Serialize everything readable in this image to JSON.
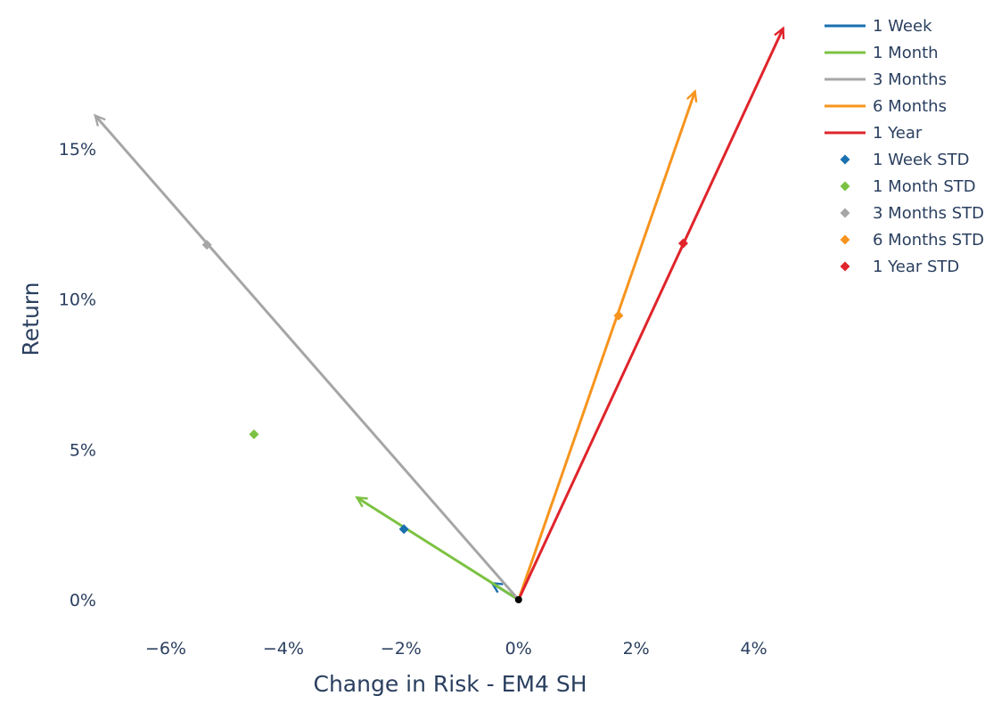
{
  "chart_data": {
    "type": "scatter",
    "title": "",
    "xlabel": "Change in Risk - EM4 SH",
    "ylabel": "Return",
    "xlim": [
      -7.0,
      4.4
    ],
    "ylim": [
      -0.8,
      19.2
    ],
    "x_ticks": [
      -6,
      -4,
      -2,
      0,
      2,
      4
    ],
    "x_tick_labels": [
      "−6%",
      "−4%",
      "−2%",
      "0%",
      "2%",
      "4%"
    ],
    "y_ticks": [
      0,
      5,
      10,
      15
    ],
    "y_tick_labels": [
      "0%",
      "5%",
      "10%",
      "15%"
    ],
    "grid": false,
    "legend_position": "top-right",
    "origin": [
      0,
      0
    ],
    "series": [
      {
        "name": "1 Week",
        "kind": "arrow",
        "color": "#1a6faf",
        "start": [
          0,
          0
        ],
        "end": [
          -0.45,
          0.55
        ]
      },
      {
        "name": "1 Month",
        "kind": "arrow",
        "color": "#7cc242",
        "start": [
          0,
          0
        ],
        "end": [
          -2.75,
          3.4
        ]
      },
      {
        "name": "3 Months",
        "kind": "arrow",
        "color": "#a6a6a6",
        "start": [
          0,
          0
        ],
        "end": [
          -7.2,
          16.1
        ]
      },
      {
        "name": "6 Months",
        "kind": "arrow",
        "color": "#f7941d",
        "start": [
          0,
          0
        ],
        "end": [
          3.0,
          16.9
        ]
      },
      {
        "name": "1 Year",
        "kind": "arrow",
        "color": "#e0242b",
        "start": [
          0,
          0
        ],
        "end": [
          4.5,
          19.0
        ]
      },
      {
        "name": "1 Week STD",
        "kind": "marker",
        "color": "#1a6faf",
        "point": [
          -1.95,
          2.35
        ]
      },
      {
        "name": "1 Month STD",
        "kind": "marker",
        "color": "#7cc242",
        "point": [
          -4.5,
          5.5
        ]
      },
      {
        "name": "3 Months STD",
        "kind": "marker",
        "color": "#a6a6a6",
        "point": [
          -5.3,
          11.8
        ]
      },
      {
        "name": "6 Months STD",
        "kind": "marker",
        "color": "#f7941d",
        "point": [
          1.7,
          9.45
        ]
      },
      {
        "name": "1 Year STD",
        "kind": "marker",
        "color": "#e0242b",
        "point": [
          2.8,
          11.85
        ]
      }
    ]
  }
}
